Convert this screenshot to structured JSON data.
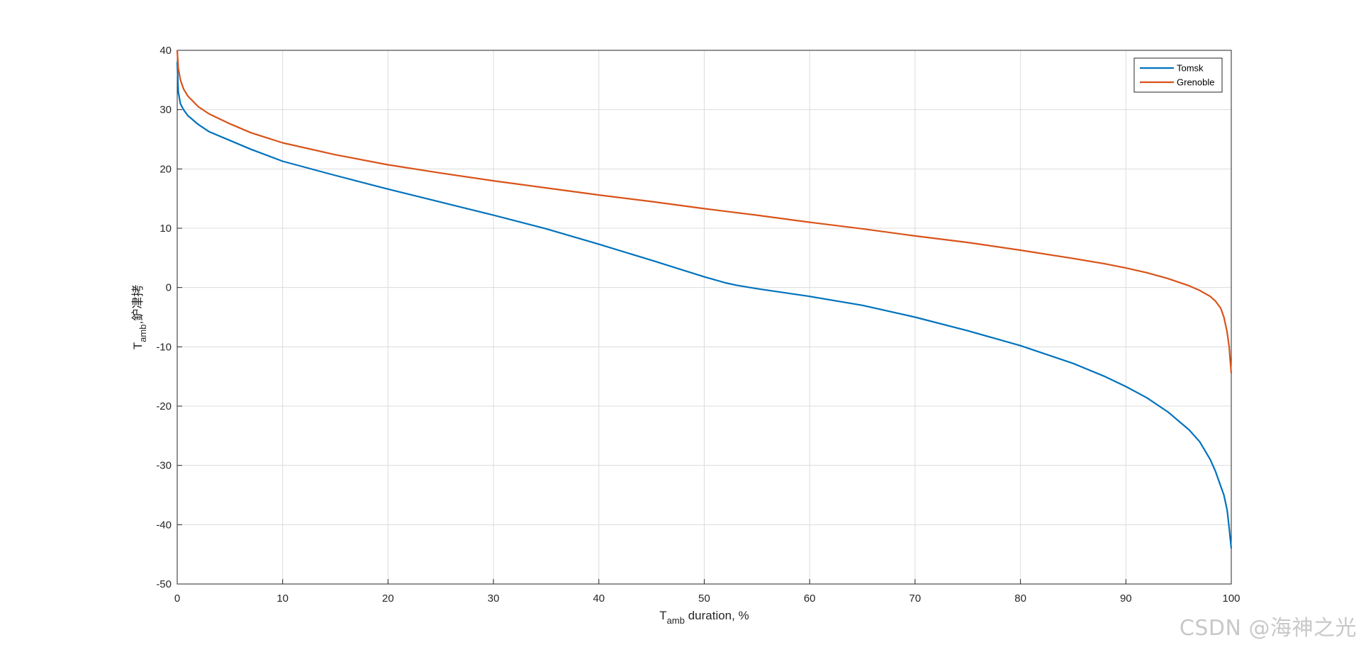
{
  "chart_data": {
    "type": "line",
    "title": "",
    "xlabel": {
      "main": "T",
      "sub": "amb",
      "rest": " duration, %"
    },
    "ylabel": {
      "main": "T",
      "sub": "amb",
      "rest": ",鈩冿拷"
    },
    "xlim": [
      0,
      100
    ],
    "ylim": [
      -50,
      40
    ],
    "xticks": [
      0,
      10,
      20,
      30,
      40,
      50,
      60,
      70,
      80,
      90,
      100
    ],
    "yticks": [
      -50,
      -40,
      -30,
      -20,
      -10,
      0,
      10,
      20,
      30,
      40
    ],
    "grid": true,
    "legend_position": "top-right",
    "series": [
      {
        "name": "Tomsk",
        "color": "#0072BD",
        "x": [
          0,
          0.1,
          0.3,
          0.6,
          1,
          2,
          3,
          5,
          7,
          10,
          15,
          20,
          25,
          30,
          35,
          40,
          45,
          50,
          52,
          53,
          55,
          60,
          65,
          70,
          75,
          80,
          85,
          88,
          90,
          92,
          94,
          96,
          97,
          98,
          98.5,
          99,
          99.3,
          99.6,
          99.8,
          100
        ],
        "y": [
          38,
          33,
          31,
          30,
          29,
          27.5,
          26.3,
          24.8,
          23.3,
          21.3,
          18.9,
          16.6,
          14.4,
          12.2,
          9.9,
          7.3,
          4.6,
          1.8,
          0.8,
          0.4,
          -0.2,
          -1.5,
          -3,
          -5,
          -7.3,
          -9.8,
          -12.8,
          -15,
          -16.7,
          -18.6,
          -21,
          -24,
          -26,
          -29,
          -31,
          -33.5,
          -35,
          -37.5,
          -40.5,
          -44
        ]
      },
      {
        "name": "Grenoble",
        "color": "#D95319",
        "x": [
          0,
          0.1,
          0.3,
          0.6,
          1,
          2,
          3,
          5,
          7,
          10,
          15,
          20,
          25,
          30,
          35,
          40,
          45,
          50,
          55,
          60,
          65,
          70,
          75,
          80,
          85,
          88,
          90,
          92,
          94,
          96,
          97,
          98,
          98.5,
          99,
          99.3,
          99.6,
          99.8,
          100
        ],
        "y": [
          40,
          37,
          35,
          33.5,
          32.3,
          30.5,
          29.3,
          27.6,
          26.1,
          24.4,
          22.4,
          20.7,
          19.3,
          18,
          16.8,
          15.6,
          14.5,
          13.3,
          12.2,
          11,
          9.9,
          8.7,
          7.6,
          6.3,
          4.9,
          4,
          3.3,
          2.5,
          1.5,
          0.3,
          -0.5,
          -1.5,
          -2.3,
          -3.5,
          -5,
          -7.5,
          -10,
          -14.5
        ]
      }
    ]
  },
  "watermark": "CSDN @海神之光"
}
